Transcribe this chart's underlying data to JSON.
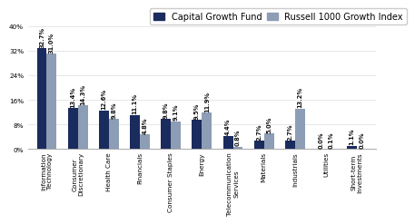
{
  "categories": [
    "Information\nTechnology",
    "Consumer\nDiscretionary",
    "Health Care",
    "Financials",
    "Consumer Staples",
    "Energy",
    "Telecommunication\nServices",
    "Materials",
    "Industrials",
    "Utilities",
    "Short-term\nInvestments"
  ],
  "fund_values": [
    32.7,
    13.4,
    12.6,
    11.1,
    9.8,
    9.5,
    4.4,
    2.7,
    2.7,
    0.0,
    1.1
  ],
  "benchmark_values": [
    31.0,
    14.3,
    9.8,
    4.8,
    9.1,
    11.9,
    0.8,
    5.0,
    13.2,
    0.1,
    0.0
  ],
  "fund_color": "#1a2b5e",
  "benchmark_color": "#8c9db5",
  "fund_label": "Capital Growth Fund",
  "benchmark_label": "Russell 1000 Growth Index",
  "ylim": [
    0,
    40
  ],
  "yticks": [
    0,
    8,
    16,
    24,
    32,
    40
  ],
  "ytick_labels": [
    "0%",
    "8%",
    "16%",
    "24%",
    "32%",
    "40%"
  ],
  "bar_width": 0.32,
  "value_fontsize": 4.8,
  "label_fontsize": 5.2,
  "legend_fontsize": 7.0
}
